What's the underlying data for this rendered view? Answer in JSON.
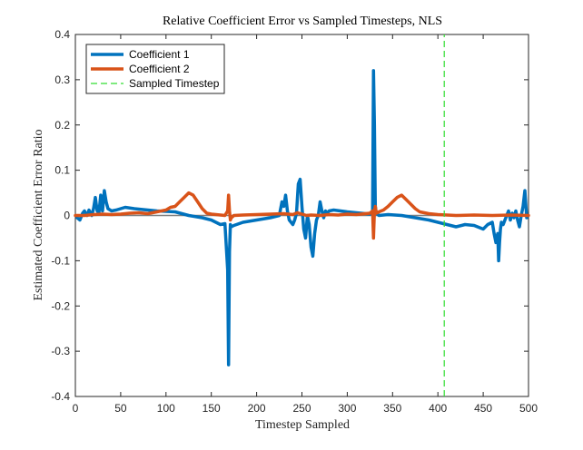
{
  "chart_data": {
    "type": "line",
    "title": "Relative Coefficient Error vs Sampled Timesteps, NLS",
    "xlabel": "Timestep Sampled",
    "ylabel": "Estimated Coefficient Error Ratio",
    "xlim": [
      0,
      500
    ],
    "ylim": [
      -0.4,
      0.4
    ],
    "xticks": [
      0,
      50,
      100,
      150,
      200,
      250,
      300,
      350,
      400,
      450,
      500
    ],
    "yticks": [
      0.4,
      0.3,
      0.2,
      0.1,
      0,
      -0.1,
      -0.2,
      -0.3,
      -0.4
    ],
    "legend_position": "top-left",
    "grid": false,
    "reference_line_y": 0,
    "series": [
      {
        "name": "Coefficient 1",
        "color": "#0072BD",
        "line_style": "solid",
        "x": [
          2,
          5,
          8,
          10,
          13,
          15,
          18,
          20,
          22,
          24,
          26,
          28,
          30,
          32,
          34,
          36,
          40,
          45,
          55,
          65,
          75,
          90,
          110,
          125,
          140,
          150,
          155,
          160,
          165,
          168,
          169,
          170,
          171,
          172,
          175,
          185,
          200,
          215,
          225,
          228,
          230,
          232,
          234,
          236,
          238,
          240,
          242,
          244,
          246,
          248,
          250,
          252,
          254,
          256,
          258,
          260,
          262,
          264,
          266,
          268,
          270,
          272,
          274,
          276,
          278,
          280,
          285,
          300,
          315,
          325,
          328,
          329,
          330,
          331,
          332,
          335,
          345,
          360,
          375,
          390,
          400,
          410,
          420,
          430,
          440,
          450,
          455,
          460,
          462,
          464,
          466,
          467,
          468,
          469,
          470,
          472,
          475,
          478,
          480,
          482,
          484,
          486,
          488,
          490,
          492,
          494,
          496,
          498
        ],
        "y": [
          -0.005,
          -0.01,
          0.005,
          0.01,
          0.0,
          0.012,
          0.0,
          0.015,
          0.04,
          0.01,
          0.005,
          0.045,
          0.01,
          0.055,
          0.03,
          0.015,
          0.01,
          0.012,
          0.018,
          0.015,
          0.013,
          0.01,
          0.008,
          0.0,
          -0.005,
          -0.01,
          -0.015,
          -0.02,
          -0.018,
          -0.12,
          -0.33,
          -0.08,
          -0.02,
          -0.025,
          -0.022,
          -0.015,
          -0.01,
          -0.005,
          0.0,
          0.03,
          0.02,
          0.045,
          0.01,
          -0.01,
          -0.015,
          -0.02,
          -0.01,
          0.005,
          0.07,
          0.08,
          0.02,
          -0.03,
          -0.05,
          0.0,
          -0.02,
          -0.07,
          -0.09,
          -0.04,
          -0.01,
          0.0,
          0.03,
          0.01,
          -0.005,
          0.01,
          0.005,
          0.01,
          0.012,
          0.008,
          0.005,
          0.003,
          0.01,
          0.32,
          0.2,
          0.02,
          0.005,
          0.0,
          0.002,
          0.0,
          -0.005,
          -0.01,
          -0.015,
          -0.02,
          -0.025,
          -0.02,
          -0.022,
          -0.03,
          -0.02,
          -0.015,
          -0.04,
          -0.06,
          -0.04,
          -0.1,
          -0.06,
          -0.03,
          -0.015,
          -0.02,
          -0.005,
          0.01,
          -0.01,
          0.005,
          -0.005,
          0.01,
          -0.01,
          -0.025,
          0.0,
          0.02,
          0.055,
          -0.005
        ]
      },
      {
        "name": "Coefficient 2",
        "color": "#D95319",
        "line_style": "solid",
        "x": [
          0,
          10,
          20,
          30,
          40,
          50,
          60,
          70,
          80,
          90,
          100,
          105,
          110,
          115,
          120,
          125,
          130,
          135,
          140,
          145,
          150,
          155,
          160,
          165,
          168,
          169,
          170,
          171,
          172,
          175,
          185,
          200,
          215,
          230,
          240,
          245,
          250,
          255,
          260,
          270,
          280,
          290,
          300,
          310,
          320,
          325,
          328,
          329,
          330,
          331,
          332,
          335,
          340,
          345,
          350,
          355,
          360,
          365,
          370,
          375,
          380,
          390,
          400,
          420,
          440,
          460,
          480,
          500
        ],
        "y": [
          0.0,
          0.0,
          0.002,
          0.003,
          0.002,
          0.003,
          0.005,
          0.006,
          0.004,
          0.008,
          0.012,
          0.018,
          0.02,
          0.03,
          0.04,
          0.05,
          0.045,
          0.03,
          0.015,
          0.005,
          0.003,
          0.002,
          0.001,
          0.0,
          0.01,
          0.045,
          0.01,
          -0.01,
          -0.005,
          0.0,
          0.001,
          0.002,
          0.003,
          0.004,
          0.002,
          0.006,
          0.003,
          0.0,
          0.001,
          0.0,
          0.002,
          0.001,
          0.003,
          0.002,
          0.004,
          0.005,
          0.01,
          -0.05,
          0.01,
          0.02,
          0.005,
          0.008,
          0.012,
          0.02,
          0.03,
          0.04,
          0.045,
          0.035,
          0.025,
          0.015,
          0.008,
          0.004,
          0.002,
          0.0,
          0.001,
          0.0,
          0.001,
          0.0
        ]
      },
      {
        "name": "Sampled Timestep",
        "color": "#33DD33",
        "line_style": "dashed",
        "x": [
          407,
          407
        ],
        "y": [
          -0.4,
          0.4
        ]
      }
    ]
  }
}
